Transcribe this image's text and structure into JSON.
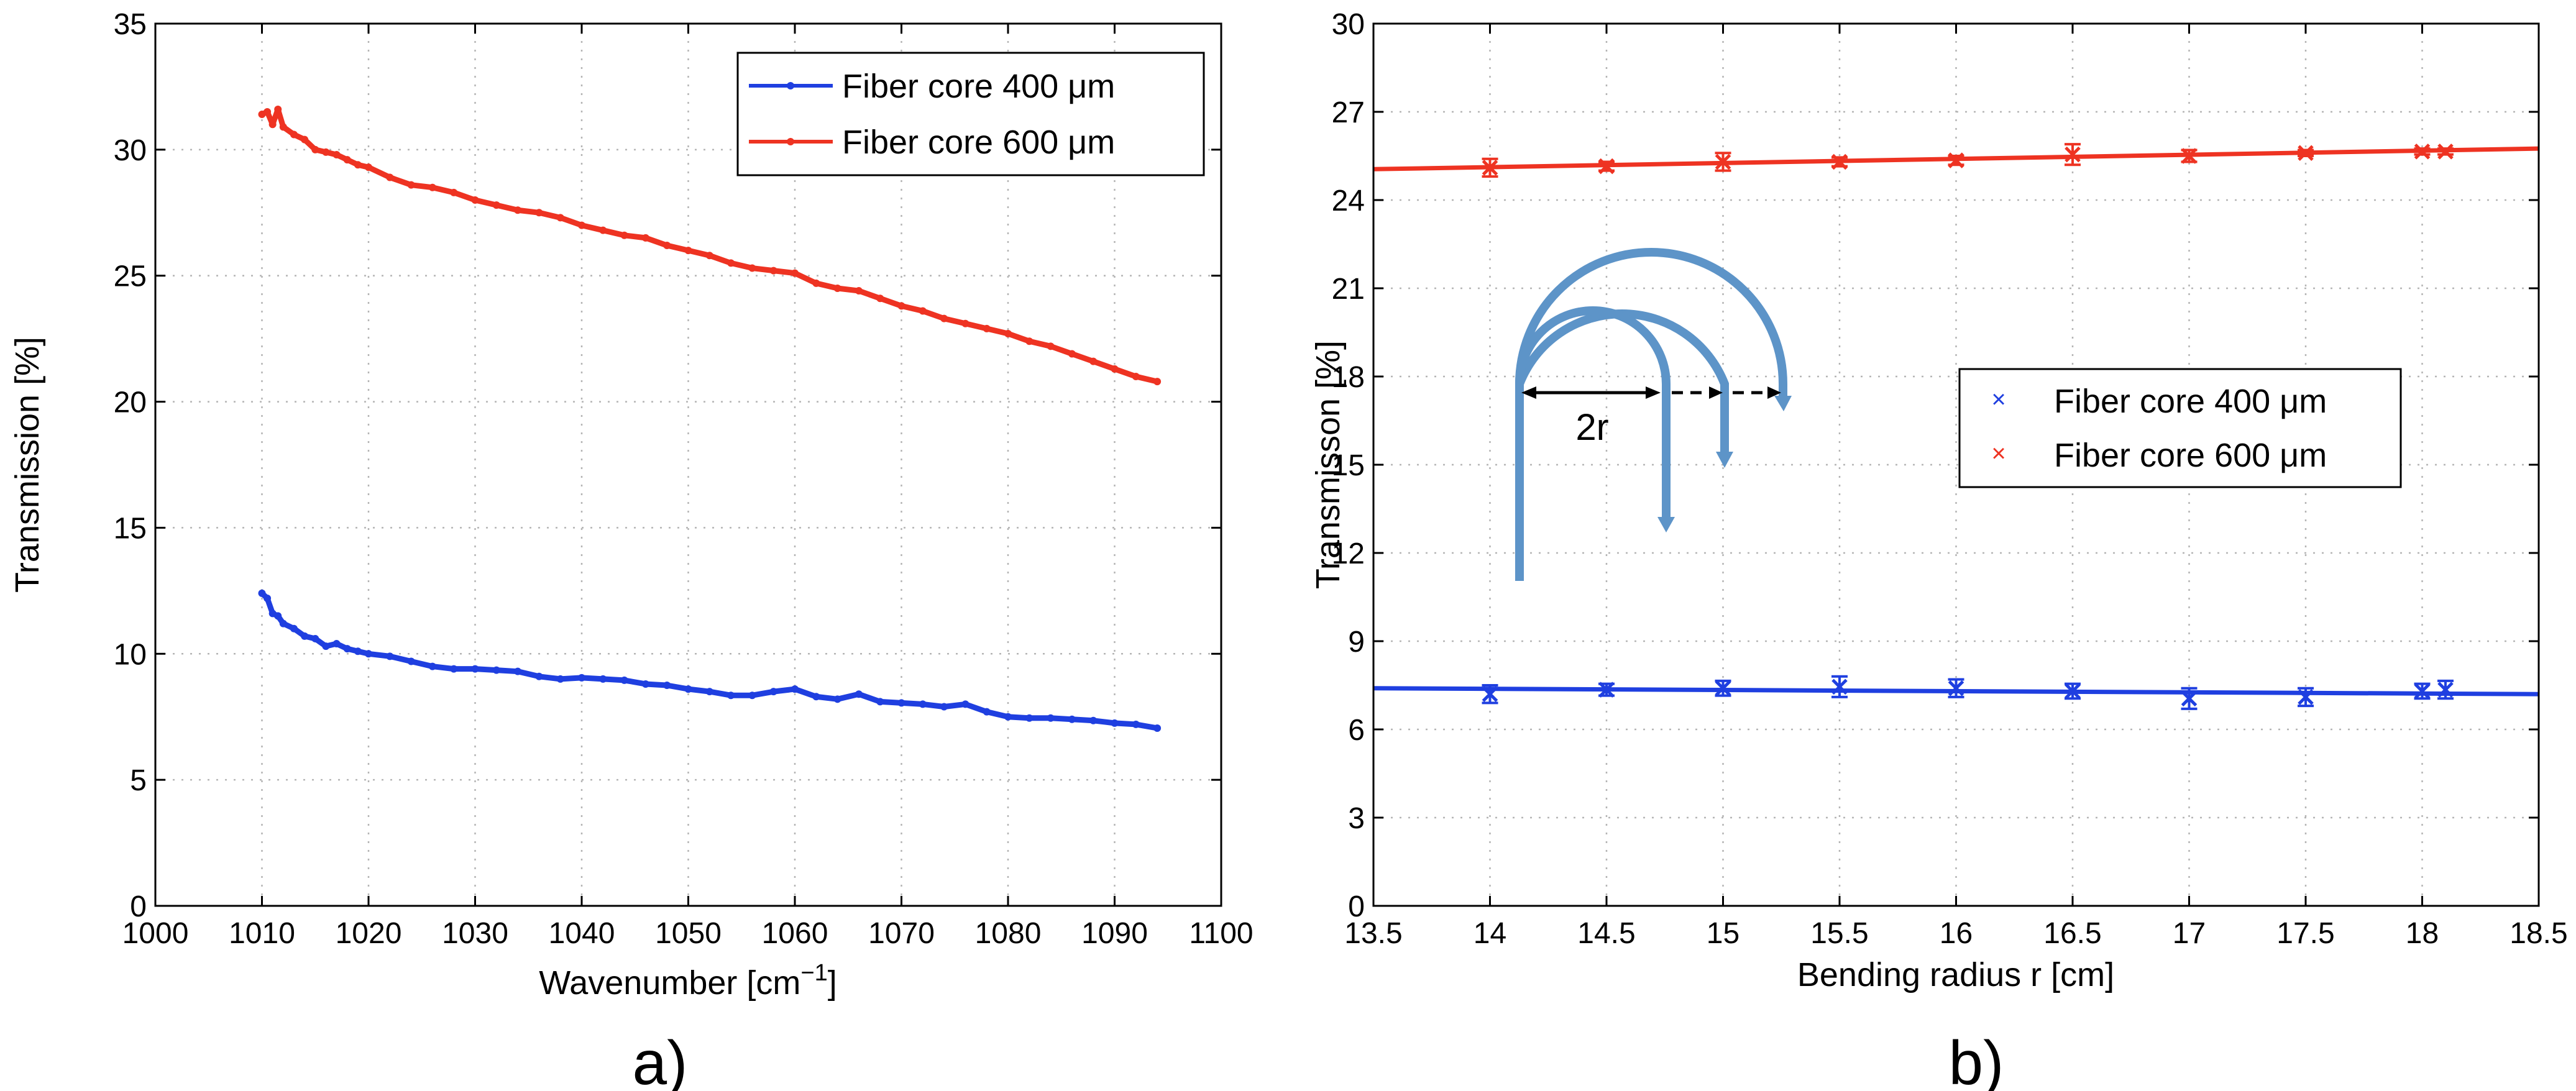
{
  "chart_data": [
    {
      "panel_label": "a)",
      "type": "line",
      "title": "",
      "xlabel": "Wavenumber [cm",
      "xlabel_sup": "−1",
      "xlabel_end": "]",
      "ylabel": "Transmission [%]",
      "xlim": [
        1000,
        1100
      ],
      "ylim": [
        0,
        35
      ],
      "xticks": [
        1000,
        1010,
        1020,
        1030,
        1040,
        1050,
        1060,
        1070,
        1080,
        1090,
        1100
      ],
      "yticks": [
        0,
        5,
        10,
        15,
        20,
        25,
        30,
        35
      ],
      "grid": true,
      "legend_position": "top-right",
      "series": [
        {
          "name": "Fiber core 400 μm",
          "color": "#1f3fe0",
          "x": [
            1010,
            1010.5,
            1011,
            1011.5,
            1012,
            1013,
            1014,
            1015,
            1016,
            1017,
            1018,
            1019,
            1020,
            1022,
            1024,
            1026,
            1028,
            1030,
            1032,
            1034,
            1036,
            1038,
            1040,
            1042,
            1044,
            1046,
            1048,
            1050,
            1052,
            1054,
            1056,
            1058,
            1060,
            1062,
            1064,
            1066,
            1068,
            1070,
            1072,
            1074,
            1076,
            1078,
            1080,
            1082,
            1084,
            1086,
            1088,
            1090,
            1092,
            1094
          ],
          "y": [
            12.4,
            12.2,
            11.6,
            11.5,
            11.2,
            11.0,
            10.7,
            10.6,
            10.3,
            10.4,
            10.2,
            10.1,
            10.0,
            9.9,
            9.7,
            9.5,
            9.4,
            9.4,
            9.35,
            9.3,
            9.1,
            9.0,
            9.05,
            9.0,
            8.95,
            8.8,
            8.75,
            8.6,
            8.5,
            8.35,
            8.35,
            8.5,
            8.6,
            8.3,
            8.2,
            8.4,
            8.1,
            8.05,
            8.0,
            7.9,
            8.0,
            7.7,
            7.5,
            7.45,
            7.45,
            7.4,
            7.35,
            7.25,
            7.2,
            7.05
          ]
        },
        {
          "name": "Fiber core 600 μm",
          "color": "#ee3322",
          "x": [
            1010,
            1010.5,
            1011,
            1011.5,
            1012,
            1013,
            1014,
            1015,
            1016,
            1017,
            1018,
            1019,
            1020,
            1022,
            1024,
            1026,
            1028,
            1030,
            1032,
            1034,
            1036,
            1038,
            1040,
            1042,
            1044,
            1046,
            1048,
            1050,
            1052,
            1054,
            1056,
            1058,
            1060,
            1062,
            1064,
            1066,
            1068,
            1070,
            1072,
            1074,
            1076,
            1078,
            1080,
            1082,
            1084,
            1086,
            1088,
            1090,
            1092,
            1094
          ],
          "y": [
            31.4,
            31.5,
            31.0,
            31.6,
            30.9,
            30.6,
            30.4,
            30.0,
            29.9,
            29.8,
            29.6,
            29.4,
            29.3,
            28.9,
            28.6,
            28.5,
            28.3,
            28.0,
            27.8,
            27.6,
            27.5,
            27.3,
            27.0,
            26.8,
            26.6,
            26.5,
            26.2,
            26.0,
            25.8,
            25.5,
            25.3,
            25.2,
            25.1,
            24.7,
            24.5,
            24.4,
            24.1,
            23.8,
            23.6,
            23.3,
            23.1,
            22.9,
            22.7,
            22.4,
            22.2,
            21.9,
            21.6,
            21.3,
            21.0,
            20.8
          ]
        }
      ]
    },
    {
      "panel_label": "b)",
      "type": "scatter",
      "title": "",
      "xlabel": "Bending radius r [cm]",
      "ylabel": "Transmisson [%]",
      "xlim": [
        13.5,
        18.5
      ],
      "ylim": [
        0,
        30
      ],
      "xticks": [
        13.5,
        14,
        14.5,
        15,
        15.5,
        16,
        16.5,
        17,
        17.5,
        18,
        18.5
      ],
      "xtick_labels": [
        "13.5",
        "14",
        "14.5",
        "15",
        "15.5",
        "16",
        "16.5",
        "17",
        "17.5",
        "18",
        "18.5"
      ],
      "yticks": [
        0,
        3,
        6,
        9,
        12,
        15,
        18,
        21,
        24,
        27,
        30
      ],
      "grid": true,
      "legend_position": "center-right",
      "annotation": "2r",
      "series": [
        {
          "name": "Fiber core 400 μm",
          "color": "#1f3fe0",
          "marker": "x",
          "x": [
            14,
            14.5,
            15,
            15.5,
            16,
            16.5,
            17,
            17.5,
            18,
            18.1
          ],
          "y": [
            7.2,
            7.35,
            7.4,
            7.45,
            7.4,
            7.3,
            7.05,
            7.1,
            7.3,
            7.35
          ],
          "yerr": [
            0.3,
            0.2,
            0.25,
            0.35,
            0.3,
            0.25,
            0.35,
            0.3,
            0.25,
            0.3
          ],
          "fit": {
            "x": [
              13.5,
              18.5
            ],
            "y": [
              7.4,
              7.2
            ]
          }
        },
        {
          "name": "Fiber core 600 μm",
          "color": "#ee3322",
          "marker": "x",
          "x": [
            14,
            14.5,
            15,
            15.5,
            16,
            16.5,
            17,
            17.5,
            18,
            18.1
          ],
          "y": [
            25.1,
            25.15,
            25.3,
            25.3,
            25.35,
            25.55,
            25.5,
            25.6,
            25.65,
            25.65
          ],
          "yerr": [
            0.3,
            0.15,
            0.3,
            0.15,
            0.15,
            0.35,
            0.2,
            0.1,
            0.1,
            0.1
          ],
          "fit": {
            "x": [
              13.5,
              18.5
            ],
            "y": [
              25.05,
              25.75
            ]
          }
        }
      ]
    }
  ]
}
